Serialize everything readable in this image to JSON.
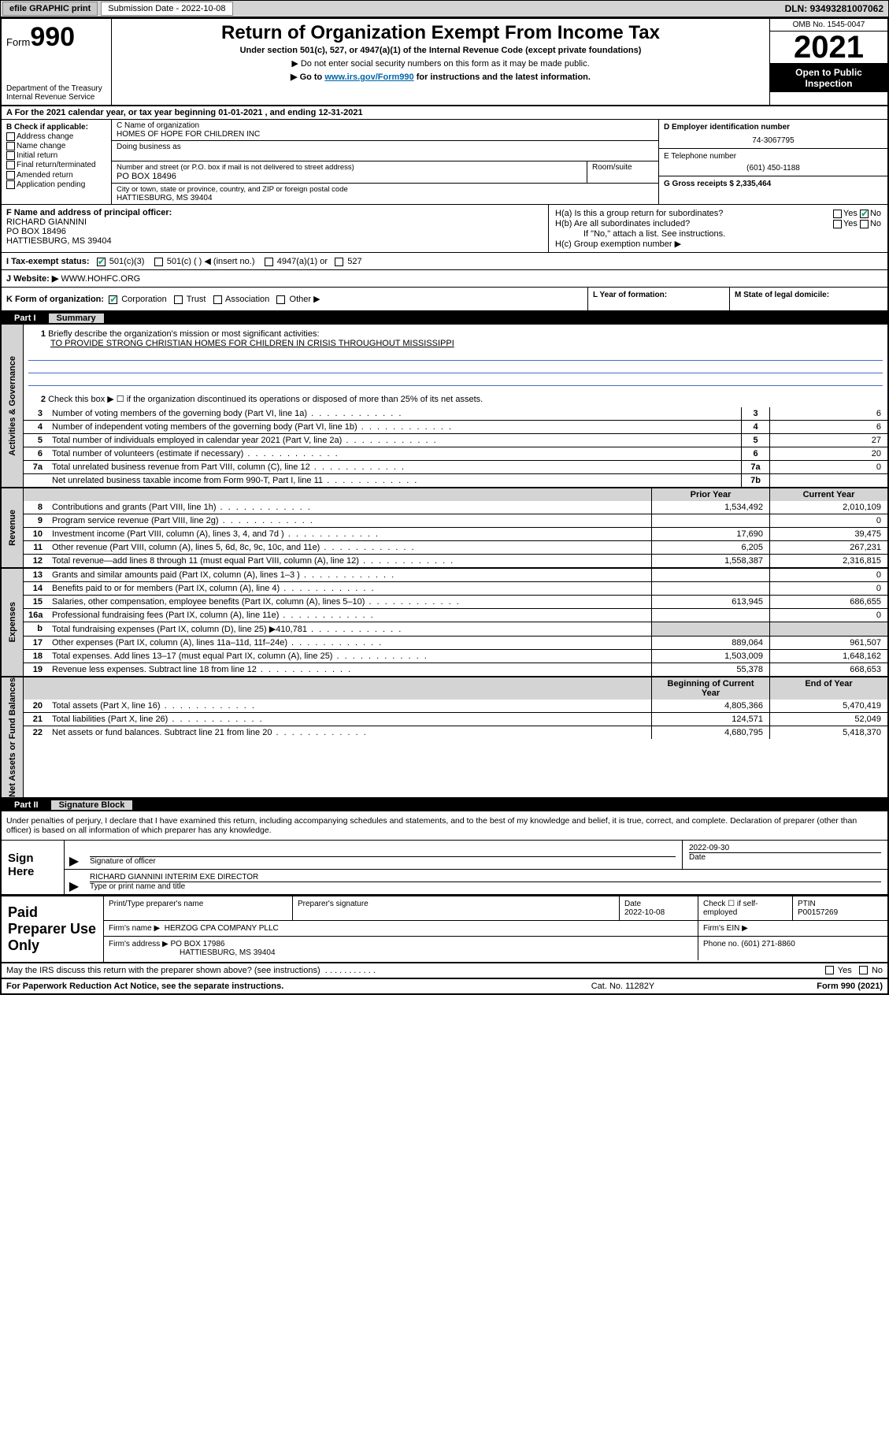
{
  "topbar": {
    "efile": "efile GRAPHIC print",
    "submission_label": "Submission Date - 2022-10-08",
    "dln_label": "DLN: 93493281007062"
  },
  "header": {
    "form_prefix": "Form",
    "form_num": "990",
    "dept": "Department of the Treasury",
    "irs": "Internal Revenue Service",
    "title": "Return of Organization Exempt From Income Tax",
    "sub1": "Under section 501(c), 527, or 4947(a)(1) of the Internal Revenue Code (except private foundations)",
    "sub2": "▶ Do not enter social security numbers on this form as it may be made public.",
    "sub3_pre": "▶ Go to ",
    "sub3_link": "www.irs.gov/Form990",
    "sub3_post": " for instructions and the latest information.",
    "omb": "OMB No. 1545-0047",
    "year": "2021",
    "open": "Open to Public Inspection"
  },
  "rowA": {
    "text": "A For the 2021 calendar year, or tax year beginning 01-01-2021    , and ending 12-31-2021"
  },
  "colB": {
    "label": "B Check if applicable:",
    "opts": [
      "Address change",
      "Name change",
      "Initial return",
      "Final return/terminated",
      "Amended return",
      "Application pending"
    ]
  },
  "colC": {
    "name_label": "C Name of organization",
    "name": "HOMES OF HOPE FOR CHILDREN INC",
    "dba_label": "Doing business as",
    "street_label": "Number and street (or P.O. box if mail is not delivered to street address)",
    "street": "PO BOX 18496",
    "room_label": "Room/suite",
    "city_label": "City or town, state or province, country, and ZIP or foreign postal code",
    "city": "HATTIESBURG, MS  39404"
  },
  "colDE": {
    "d_label": "D Employer identification number",
    "d_val": "74-3067795",
    "e_label": "E Telephone number",
    "e_val": "(601) 450-1188",
    "g_label": "G Gross receipts $ 2,335,464"
  },
  "colF": {
    "label": "F Name and address of principal officer:",
    "l1": "RICHARD GIANNINI",
    "l2": "PO BOX 18496",
    "l3": "HATTIESBURG, MS  39404"
  },
  "colH": {
    "ha": "H(a)  Is this a group return for subordinates?",
    "hb": "H(b)  Are all subordinates included?",
    "hb_note": "If \"No,\" attach a list. See instructions.",
    "hc": "H(c)  Group exemption number ▶",
    "yes": "Yes",
    "no": "No"
  },
  "rowI": {
    "label": "I   Tax-exempt status:",
    "o1": "501(c)(3)",
    "o2": "501(c) (  ) ◀ (insert no.)",
    "o3": "4947(a)(1) or",
    "o4": "527"
  },
  "rowJ": {
    "label": "J   Website: ▶",
    "val": " WWW.HOHFC.ORG"
  },
  "rowK": {
    "label": "K Form of organization:",
    "o1": "Corporation",
    "o2": "Trust",
    "o3": "Association",
    "o4": "Other ▶",
    "l_label": "L Year of formation:",
    "m_label": "M State of legal domicile:"
  },
  "part1": {
    "hdr_part": "Part I",
    "hdr_title": "Summary",
    "vtab1": "Activities & Governance",
    "vtab2": "Revenue",
    "vtab3": "Expenses",
    "vtab4": "Net Assets or Fund Balances",
    "l1": "Briefly describe the organization's mission or most significant activities:",
    "l1_val": "TO PROVIDE STRONG CHRISTIAN HOMES FOR CHILDREN IN CRISIS THROUGHOUT MISSISSIPPI",
    "l2": "Check this box ▶ ☐  if the organization discontinued its operations or disposed of more than 25% of its net assets.",
    "lines": [
      {
        "n": "3",
        "t": "Number of voting members of the governing body (Part VI, line 1a)",
        "b": "3",
        "v2": "6"
      },
      {
        "n": "4",
        "t": "Number of independent voting members of the governing body (Part VI, line 1b)",
        "b": "4",
        "v2": "6"
      },
      {
        "n": "5",
        "t": "Total number of individuals employed in calendar year 2021 (Part V, line 2a)",
        "b": "5",
        "v2": "27"
      },
      {
        "n": "6",
        "t": "Total number of volunteers (estimate if necessary)",
        "b": "6",
        "v2": "20"
      },
      {
        "n": "7a",
        "t": "Total unrelated business revenue from Part VIII, column (C), line 12",
        "b": "7a",
        "v2": "0"
      },
      {
        "n": "",
        "t": "Net unrelated business taxable income from Form 990-T, Part I, line 11",
        "b": "7b",
        "v2": ""
      }
    ],
    "col_prior": "Prior Year",
    "col_current": "Current Year",
    "rev": [
      {
        "n": "8",
        "t": "Contributions and grants (Part VIII, line 1h)",
        "v1": "1,534,492",
        "v2": "2,010,109"
      },
      {
        "n": "9",
        "t": "Program service revenue (Part VIII, line 2g)",
        "v1": "",
        "v2": "0"
      },
      {
        "n": "10",
        "t": "Investment income (Part VIII, column (A), lines 3, 4, and 7d )",
        "v1": "17,690",
        "v2": "39,475"
      },
      {
        "n": "11",
        "t": "Other revenue (Part VIII, column (A), lines 5, 6d, 8c, 9c, 10c, and 11e)",
        "v1": "6,205",
        "v2": "267,231"
      },
      {
        "n": "12",
        "t": "Total revenue—add lines 8 through 11 (must equal Part VIII, column (A), line 12)",
        "v1": "1,558,387",
        "v2": "2,316,815"
      }
    ],
    "exp": [
      {
        "n": "13",
        "t": "Grants and similar amounts paid (Part IX, column (A), lines 1–3 )",
        "v1": "",
        "v2": "0"
      },
      {
        "n": "14",
        "t": "Benefits paid to or for members (Part IX, column (A), line 4)",
        "v1": "",
        "v2": "0"
      },
      {
        "n": "15",
        "t": "Salaries, other compensation, employee benefits (Part IX, column (A), lines 5–10)",
        "v1": "613,945",
        "v2": "686,655"
      },
      {
        "n": "16a",
        "t": "Professional fundraising fees (Part IX, column (A), line 11e)",
        "v1": "",
        "v2": "0"
      },
      {
        "n": "b",
        "t": "Total fundraising expenses (Part IX, column (D), line 25) ▶410,781",
        "v1": "SHADE",
        "v2": "SHADE"
      },
      {
        "n": "17",
        "t": "Other expenses (Part IX, column (A), lines 11a–11d, 11f–24e)",
        "v1": "889,064",
        "v2": "961,507"
      },
      {
        "n": "18",
        "t": "Total expenses. Add lines 13–17 (must equal Part IX, column (A), line 25)",
        "v1": "1,503,009",
        "v2": "1,648,162"
      },
      {
        "n": "19",
        "t": "Revenue less expenses. Subtract line 18 from line 12",
        "v1": "55,378",
        "v2": "668,653"
      }
    ],
    "col_boy": "Beginning of Current Year",
    "col_eoy": "End of Year",
    "na": [
      {
        "n": "20",
        "t": "Total assets (Part X, line 16)",
        "v1": "4,805,366",
        "v2": "5,470,419"
      },
      {
        "n": "21",
        "t": "Total liabilities (Part X, line 26)",
        "v1": "124,571",
        "v2": "52,049"
      },
      {
        "n": "22",
        "t": "Net assets or fund balances. Subtract line 21 from line 20",
        "v1": "4,680,795",
        "v2": "5,418,370"
      }
    ]
  },
  "part2": {
    "hdr_part": "Part II",
    "hdr_title": "Signature Block",
    "decl": "Under penalties of perjury, I declare that I have examined this return, including accompanying schedules and statements, and to the best of my knowledge and belief, it is true, correct, and complete. Declaration of preparer (other than officer) is based on all information of which preparer has any knowledge.",
    "sign_here": "Sign Here",
    "sig_officer": "Signature of officer",
    "sig_date_val": "2022-09-30",
    "sig_date": "Date",
    "sig_name": "RICHARD GIANNINI INTERIM EXE DIRECTOR",
    "sig_name_lbl": "Type or print name and title",
    "paid": "Paid Preparer Use Only",
    "pp_name_lbl": "Print/Type preparer's name",
    "pp_sig_lbl": "Preparer's signature",
    "pp_date_lbl": "Date",
    "pp_date": "2022-10-08",
    "pp_check": "Check ☐ if self-employed",
    "pp_ptin_lbl": "PTIN",
    "pp_ptin": "P00157269",
    "firm_name_lbl": "Firm's name    ▶",
    "firm_name": "HERZOG CPA COMPANY PLLC",
    "firm_ein_lbl": "Firm's EIN ▶",
    "firm_addr_lbl": "Firm's address ▶",
    "firm_addr1": "PO BOX 17986",
    "firm_addr2": "HATTIESBURG, MS  39404",
    "firm_phone_lbl": "Phone no. (601) 271-8860",
    "may_irs": "May the IRS discuss this return with the preparer shown above? (see instructions)"
  },
  "footer": {
    "pra": "For Paperwork Reduction Act Notice, see the separate instructions.",
    "cat": "Cat. No. 11282Y",
    "form": "Form 990 (2021)"
  }
}
